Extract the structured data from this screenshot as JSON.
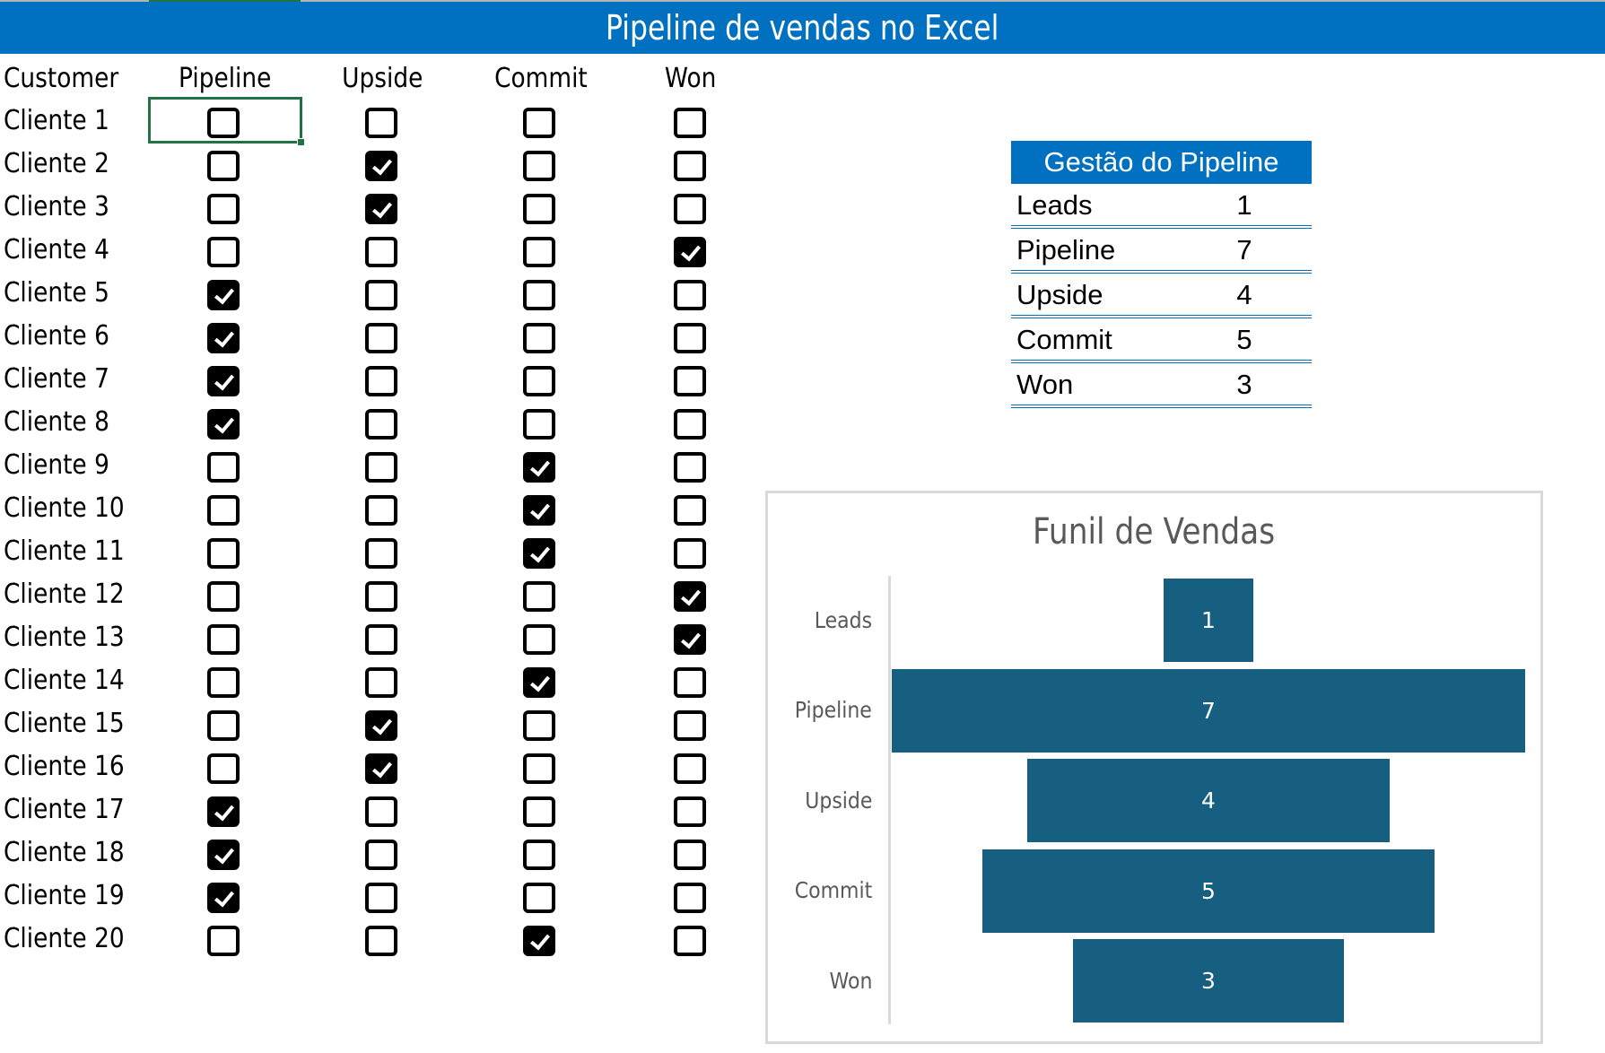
{
  "title": "Pipeline de vendas no Excel",
  "colors": {
    "title_bar": "#0070c0",
    "selection": "#217346",
    "bar_fill": "#175f80",
    "chart_text": "#595959",
    "chart_border": "#d9d9d9"
  },
  "tracker": {
    "headers": [
      "Customer",
      "Pipeline",
      "Upside",
      "Commit",
      "Won"
    ],
    "rows": [
      {
        "customer": "Cliente 1",
        "pipeline": false,
        "upside": false,
        "commit": false,
        "won": false
      },
      {
        "customer": "Cliente 2",
        "pipeline": false,
        "upside": true,
        "commit": false,
        "won": false
      },
      {
        "customer": "Cliente 3",
        "pipeline": false,
        "upside": true,
        "commit": false,
        "won": false
      },
      {
        "customer": "Cliente 4",
        "pipeline": false,
        "upside": false,
        "commit": false,
        "won": true
      },
      {
        "customer": "Cliente 5",
        "pipeline": true,
        "upside": false,
        "commit": false,
        "won": false
      },
      {
        "customer": "Cliente 6",
        "pipeline": true,
        "upside": false,
        "commit": false,
        "won": false
      },
      {
        "customer": "Cliente 7",
        "pipeline": true,
        "upside": false,
        "commit": false,
        "won": false
      },
      {
        "customer": "Cliente 8",
        "pipeline": true,
        "upside": false,
        "commit": false,
        "won": false
      },
      {
        "customer": "Cliente 9",
        "pipeline": false,
        "upside": false,
        "commit": true,
        "won": false
      },
      {
        "customer": "Cliente 10",
        "pipeline": false,
        "upside": false,
        "commit": true,
        "won": false
      },
      {
        "customer": "Cliente 11",
        "pipeline": false,
        "upside": false,
        "commit": true,
        "won": false
      },
      {
        "customer": "Cliente 12",
        "pipeline": false,
        "upside": false,
        "commit": false,
        "won": true
      },
      {
        "customer": "Cliente 13",
        "pipeline": false,
        "upside": false,
        "commit": false,
        "won": true
      },
      {
        "customer": "Cliente 14",
        "pipeline": false,
        "upside": false,
        "commit": true,
        "won": false
      },
      {
        "customer": "Cliente 15",
        "pipeline": false,
        "upside": true,
        "commit": false,
        "won": false
      },
      {
        "customer": "Cliente 16",
        "pipeline": false,
        "upside": true,
        "commit": false,
        "won": false
      },
      {
        "customer": "Cliente 17",
        "pipeline": true,
        "upside": false,
        "commit": false,
        "won": false
      },
      {
        "customer": "Cliente 18",
        "pipeline": true,
        "upside": false,
        "commit": false,
        "won": false
      },
      {
        "customer": "Cliente 19",
        "pipeline": true,
        "upside": false,
        "commit": false,
        "won": false
      },
      {
        "customer": "Cliente 20",
        "pipeline": false,
        "upside": false,
        "commit": true,
        "won": false
      }
    ]
  },
  "summary": {
    "title": "Gestão do Pipeline",
    "rows": [
      {
        "label": "Leads",
        "value": "1"
      },
      {
        "label": "Pipeline",
        "value": "7"
      },
      {
        "label": "Upside",
        "value": "4"
      },
      {
        "label": "Commit",
        "value": "5"
      },
      {
        "label": "Won",
        "value": "3"
      }
    ]
  },
  "chart_data": {
    "type": "bar",
    "subtype": "funnel",
    "title": "Funil de Vendas",
    "categories": [
      "Leads",
      "Pipeline",
      "Upside",
      "Commit",
      "Won"
    ],
    "values": [
      1,
      7,
      4,
      5,
      3
    ],
    "data_labels": [
      "1",
      "7",
      "4",
      "5",
      "3"
    ],
    "orientation": "horizontal-centered",
    "xlabel": "",
    "ylabel": "",
    "grid": false,
    "legend": "none"
  }
}
